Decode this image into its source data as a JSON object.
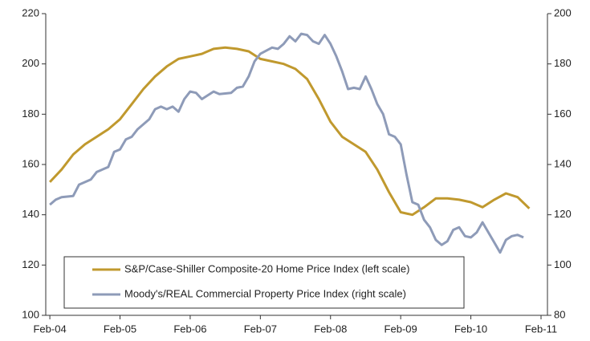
{
  "chart_data": {
    "type": "line",
    "xlim": [
      -0.7,
      85.1
    ],
    "xticks": [
      {
        "value": 0,
        "label": "Feb-04"
      },
      {
        "value": 12,
        "label": "Feb-05"
      },
      {
        "value": 24,
        "label": "Feb-06"
      },
      {
        "value": 36,
        "label": "Feb-07"
      },
      {
        "value": 48,
        "label": "Feb-08"
      },
      {
        "value": 60,
        "label": "Feb-09"
      },
      {
        "value": 72,
        "label": "Feb-10"
      },
      {
        "value": 84,
        "label": "Feb-11"
      }
    ],
    "ylim": [
      100,
      220
    ],
    "yticks": [
      100,
      120,
      140,
      160,
      180,
      200,
      220
    ],
    "y2lim": [
      80,
      200
    ],
    "y2ticks": [
      80,
      100,
      120,
      140,
      160,
      180,
      200
    ],
    "grid": false,
    "legend": "bottom-left",
    "series": [
      {
        "name": "S&P/Case-Shiller Composite-20 Home Price Index (left scale)",
        "color": "#c0992e",
        "x": [
          0,
          2,
          4,
          6,
          8,
          10,
          12,
          14,
          16,
          18,
          20,
          22,
          24,
          26,
          28,
          30,
          32,
          34,
          36,
          38,
          40,
          42,
          44,
          46,
          48,
          50,
          52,
          54,
          56,
          58,
          60,
          62,
          64,
          66,
          68,
          70,
          72,
          74,
          76,
          78,
          80,
          82
        ],
        "values": [
          153,
          158,
          164,
          168,
          171,
          174,
          178,
          184,
          190,
          195,
          199,
          202,
          203,
          204,
          206,
          206.5,
          206,
          205,
          202,
          201,
          200,
          198,
          194,
          186,
          177,
          171,
          168,
          165,
          158,
          149,
          141,
          140,
          143,
          146.5,
          146.5,
          146,
          145,
          143,
          146,
          148.5,
          147,
          142.5
        ]
      },
      {
        "name": "Moody's/REAL Commercial Property Price Index (right scale)",
        "color": "#8e9bb8",
        "axis": "y2",
        "x": [
          0,
          1,
          2,
          4,
          5,
          7,
          8,
          10,
          11,
          12,
          13,
          14,
          15,
          17,
          18,
          19,
          20,
          21,
          22,
          23,
          24,
          25,
          26,
          28,
          29,
          31,
          32,
          33,
          34,
          35,
          36,
          38,
          39,
          40,
          41,
          42,
          43,
          44,
          45,
          46,
          47,
          48,
          49,
          50,
          51,
          52,
          53,
          54,
          55,
          56,
          57,
          58,
          59,
          60,
          61,
          62,
          63,
          64,
          65,
          66,
          67,
          68,
          69,
          70,
          71,
          72,
          73,
          74,
          75,
          76,
          77,
          78,
          79,
          80,
          81
        ],
        "values": [
          124,
          126,
          127,
          127.5,
          132,
          134,
          137,
          139,
          145,
          146,
          150,
          151,
          154,
          158,
          162,
          163,
          162,
          163,
          161,
          166,
          169,
          168.5,
          166,
          169,
          168,
          168.5,
          170.5,
          171,
          175,
          181,
          184,
          186.5,
          186,
          188,
          191,
          189,
          192,
          191.5,
          189,
          188,
          191.5,
          188,
          183,
          177,
          170,
          170.5,
          170,
          175,
          170,
          164,
          160,
          152,
          151,
          148,
          136,
          125,
          124,
          118,
          115,
          110,
          108,
          109.5,
          114,
          115,
          111.5,
          111,
          113,
          117,
          113,
          109,
          105,
          110,
          111.5,
          112,
          111
        ]
      }
    ]
  }
}
